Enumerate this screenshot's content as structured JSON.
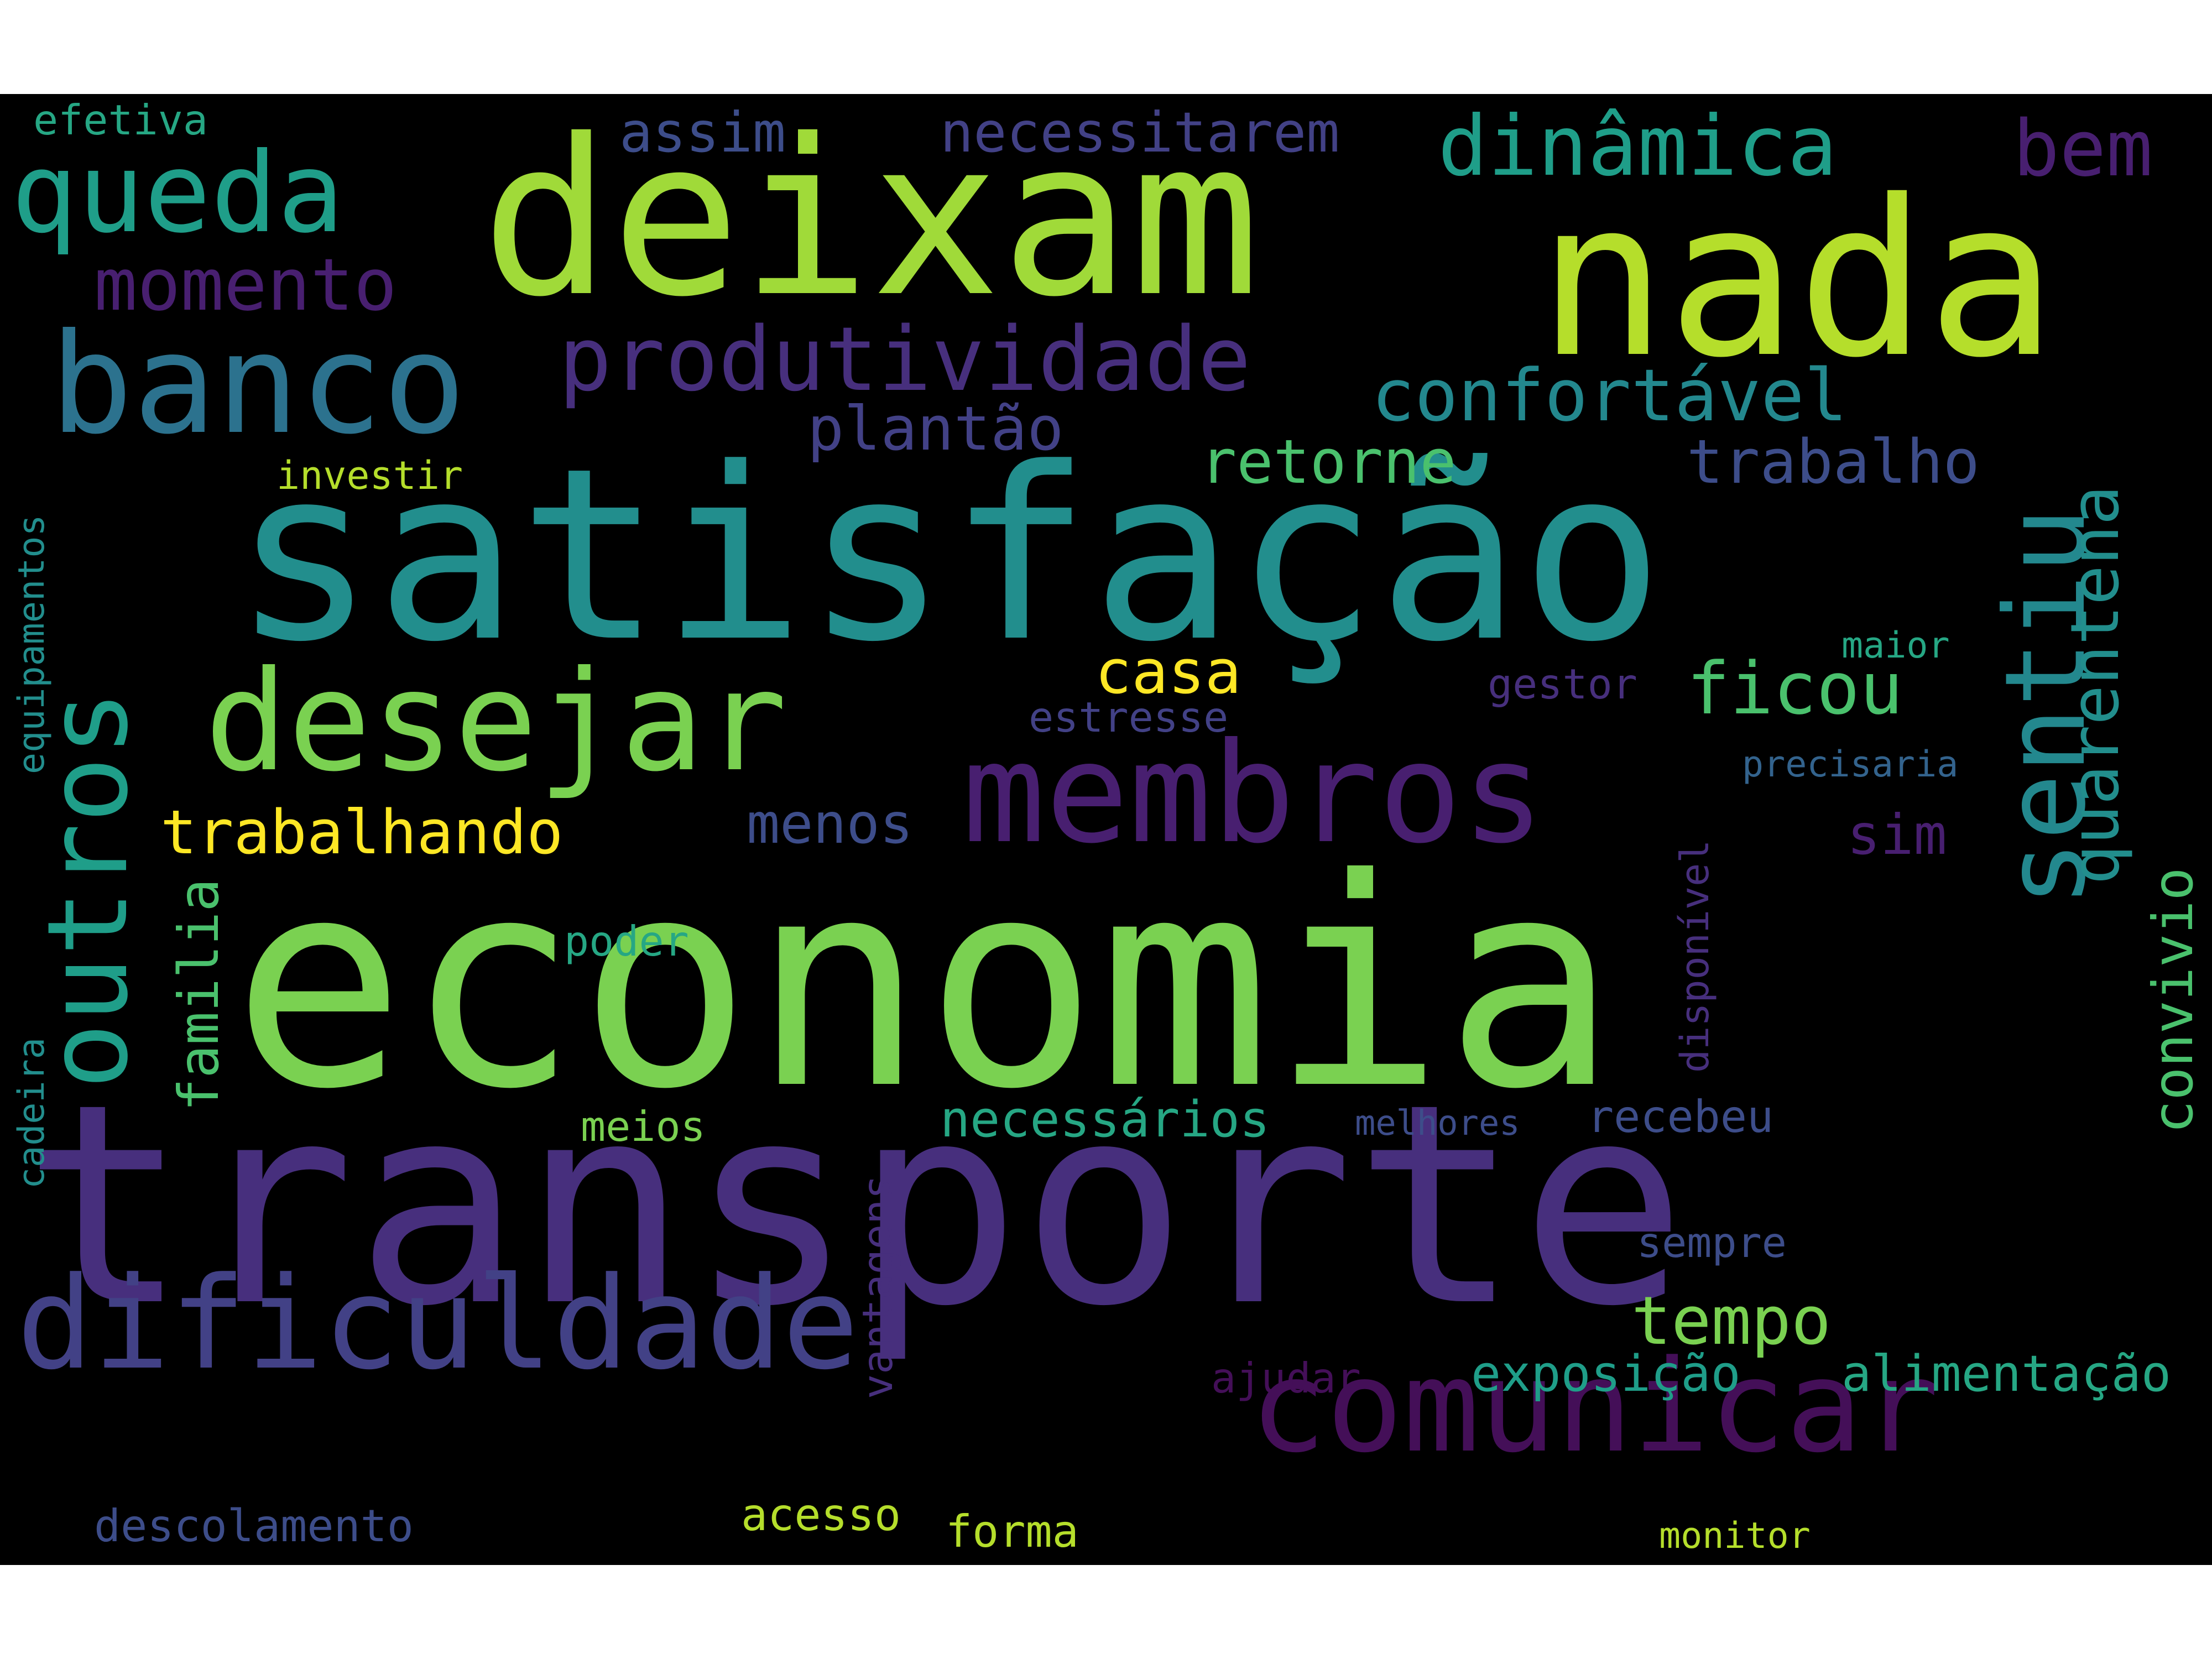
{
  "words": {
    "economia": "economia",
    "transporte": "transporte",
    "satisfacao": "satisfação",
    "deixam": "deixam",
    "nada": "nada",
    "desejar": "desejar",
    "membros": "membros",
    "banco": "banco",
    "dificuldade": "dificuldade",
    "comunicar": "comunicar",
    "queda": "queda",
    "sentiu": "sentiu",
    "outros": "outros",
    "produtividade": "produtividade",
    "dinamica": "dinâmica",
    "confortavel": "confortável",
    "ficou": "ficou",
    "trabalhando": "trabalhando",
    "momento": "momento",
    "bem": "bem",
    "quarentena": "quarentena",
    "casa": "casa",
    "trabalho": "trabalho",
    "plantao": "plantão",
    "retorne": "retorne",
    "convivio": "convivio",
    "familia": "familia",
    "tempo": "tempo",
    "necessitarem": "necessitarem",
    "assim": "assim",
    "menos": "menos",
    "sim": "sim",
    "necessarios": "necessários",
    "exposicao": "exposição",
    "alimentacao": "alimentação",
    "descolamento": "descolamento",
    "acesso": "acesso",
    "forma": "forma",
    "recebeu": "recebeu",
    "efetiva": "efetiva",
    "investir": "investir",
    "equipamentos": "equipamentos",
    "cadeira": "cadeira",
    "poder": "poder",
    "meios": "meios",
    "vantagens": "vantagens",
    "estresse": "estresse",
    "gestor": "gestor",
    "maior": "maior",
    "precisaria": "precisaria",
    "disponivel": "disponível",
    "melhores": "melhores",
    "sempre": "sempre",
    "ajudar": "ajudar",
    "monitor": "monitor"
  }
}
